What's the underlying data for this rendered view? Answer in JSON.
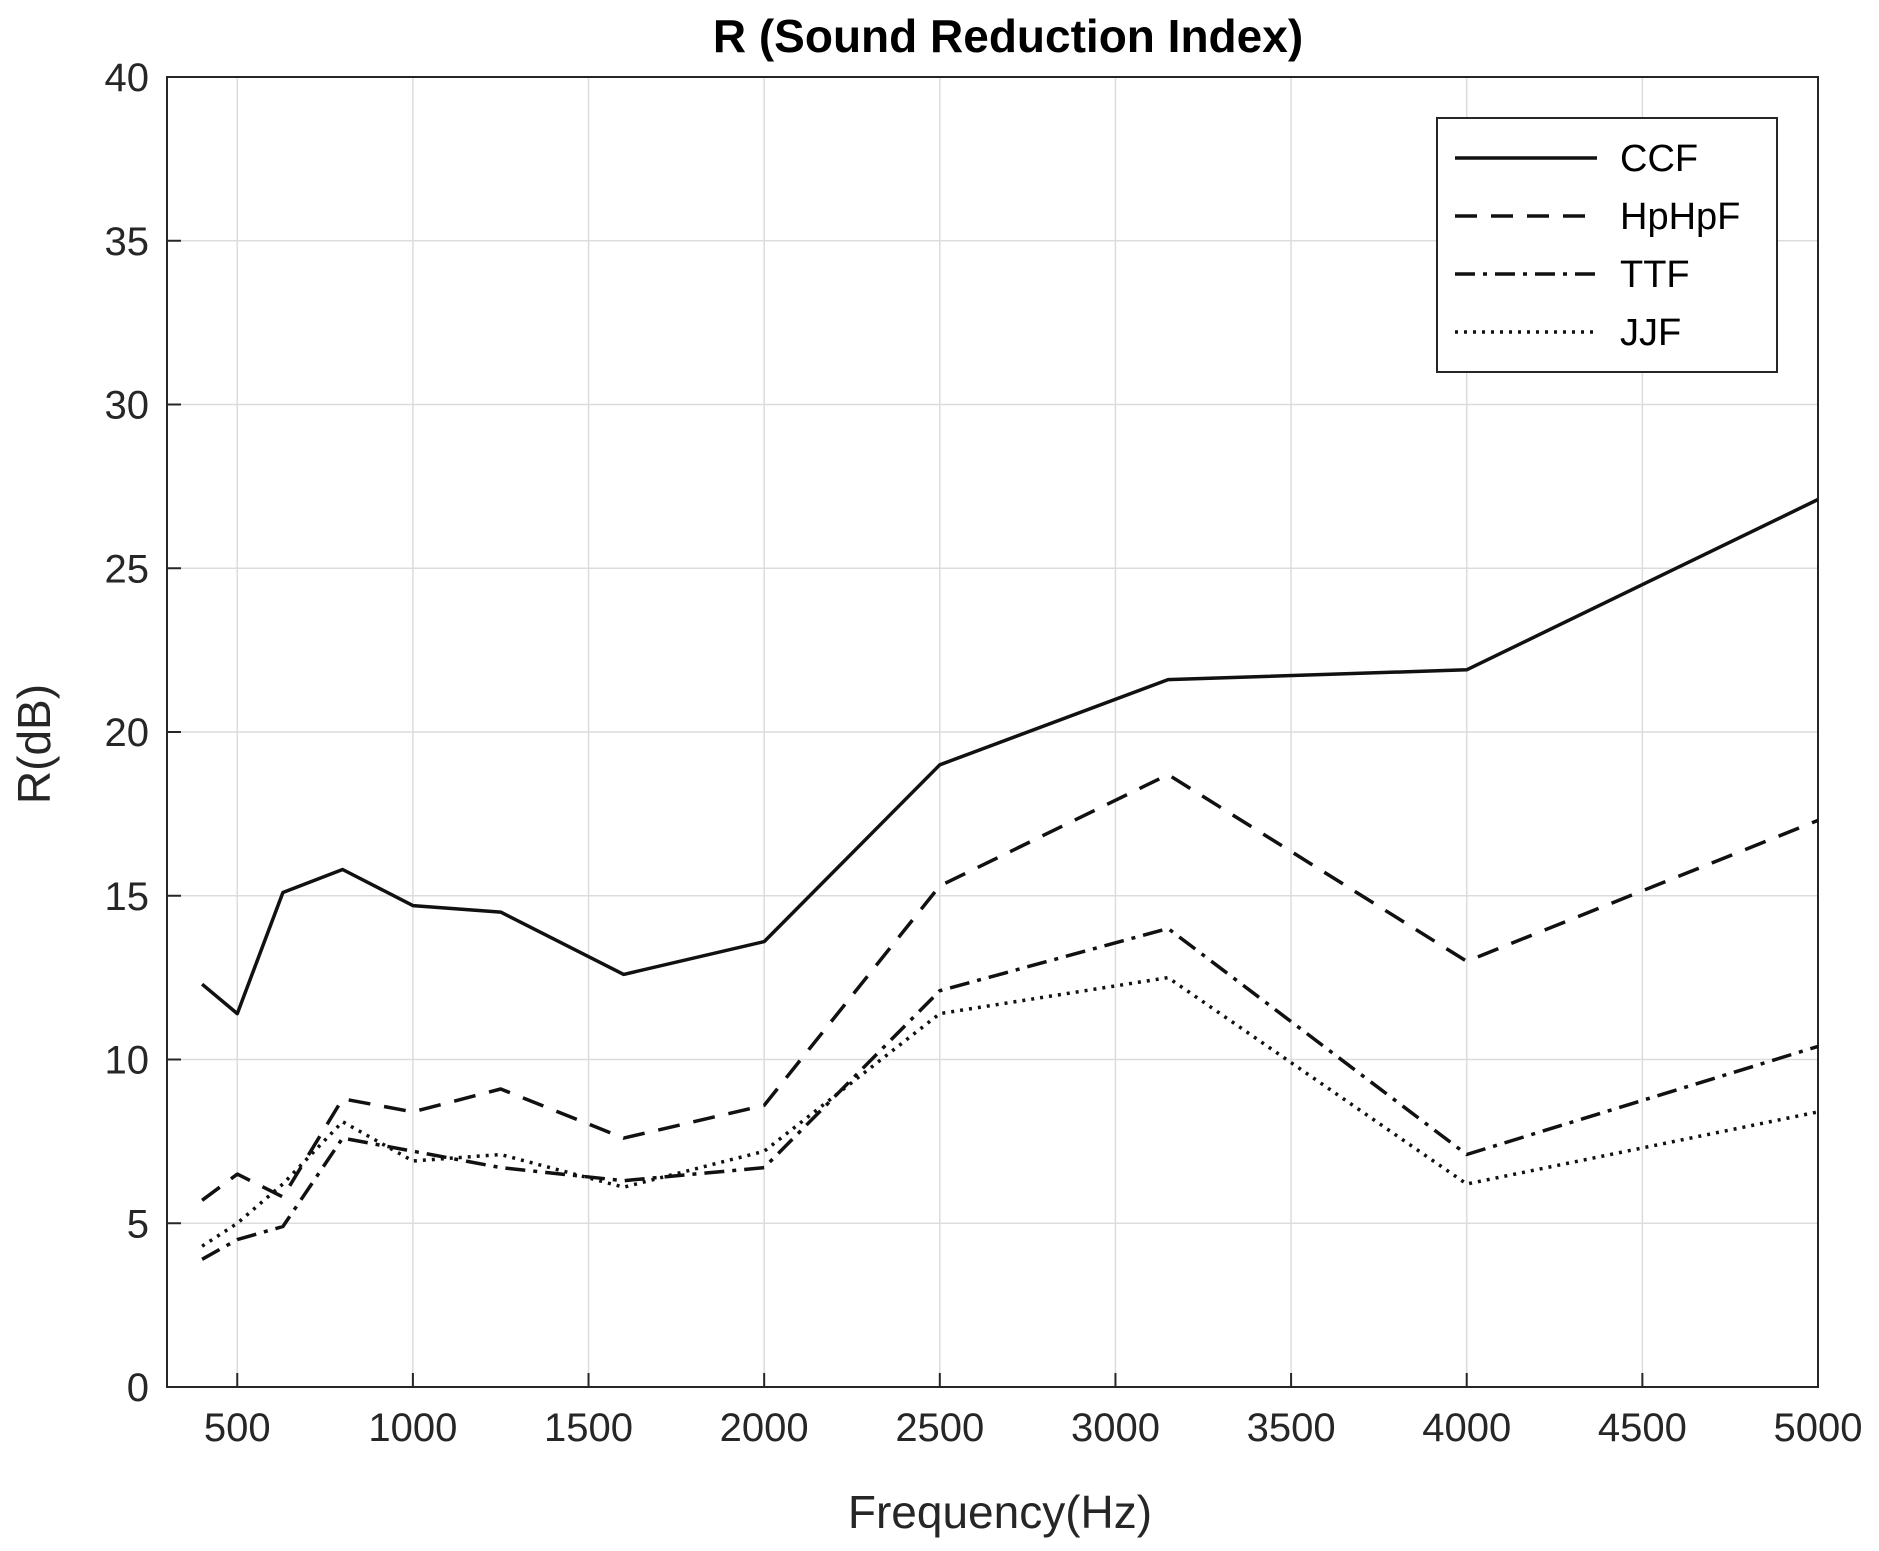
{
  "chart_data": {
    "type": "line",
    "title": "R (Sound Reduction Index)",
    "xlabel": "Frequency(Hz)",
    "ylabel": "R(dB)",
    "xlim": [
      300,
      5000
    ],
    "ylim": [
      0,
      40
    ],
    "xticks": [
      500,
      1000,
      1500,
      2000,
      2500,
      3000,
      3500,
      4000,
      4500,
      5000
    ],
    "yticks": [
      0,
      5,
      10,
      15,
      20,
      25,
      30,
      35,
      40
    ],
    "grid": true,
    "legend_position": "top-right",
    "x": [
      400,
      500,
      630,
      800,
      1000,
      1250,
      1600,
      2000,
      2500,
      3150,
      4000,
      5000
    ],
    "series": [
      {
        "name": "CCF",
        "dash": "solid",
        "values": [
          12.3,
          11.4,
          15.1,
          15.8,
          14.7,
          14.5,
          12.6,
          13.6,
          19.0,
          21.6,
          21.9,
          27.1
        ]
      },
      {
        "name": "HpHpF",
        "dash": "dashed",
        "values": [
          5.7,
          6.5,
          5.8,
          8.8,
          8.4,
          9.1,
          7.6,
          8.6,
          15.3,
          18.7,
          13.0,
          17.3
        ]
      },
      {
        "name": "TTF",
        "dash": "dashdot",
        "values": [
          3.9,
          4.5,
          4.9,
          7.6,
          7.2,
          6.7,
          6.3,
          6.7,
          12.1,
          14.0,
          7.1,
          10.4
        ]
      },
      {
        "name": "JJF",
        "dash": "dotted",
        "values": [
          4.3,
          5.0,
          6.2,
          8.1,
          6.9,
          7.1,
          6.1,
          7.2,
          11.4,
          12.5,
          6.2,
          8.4
        ]
      }
    ]
  }
}
